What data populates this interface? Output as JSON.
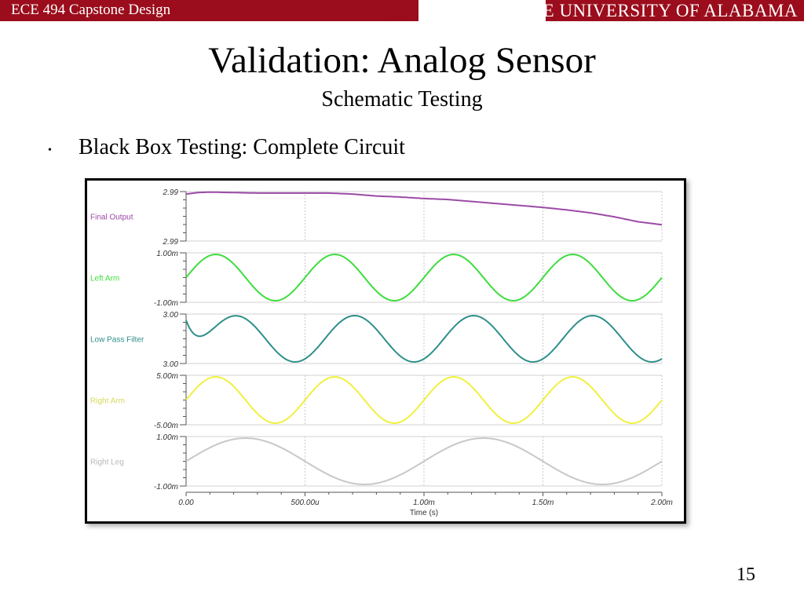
{
  "header": {
    "course": "ECE 494 Capstone Design",
    "university": "THE UNIVERSITY OF ALABAMA",
    "colors": {
      "crimson": "#9b0d1c"
    },
    "logo_icon": "script-a-icon"
  },
  "slide": {
    "title": "Validation: Analog Sensor",
    "subtitle": "Schematic Testing",
    "bullet": "Black Box Testing: Complete Circuit",
    "page_number": "15"
  },
  "chart_data": {
    "type": "line",
    "xlabel": "Time (s)",
    "x_ticks": [
      "0.00",
      "500.00u",
      "1.00m",
      "1.50m",
      "2.00m"
    ],
    "xlim": [
      0,
      0.002
    ],
    "grid": true,
    "series": [
      {
        "name": "Final Output",
        "color": "#9b4aa6",
        "ylim_labels": [
          "2.99",
          "2.99"
        ],
        "x": [
          0,
          5e-05,
          0.0001,
          0.0002,
          0.0003,
          0.0004,
          0.0005,
          0.0006,
          0.0007,
          0.0008,
          0.0009,
          0.001,
          0.0011,
          0.0012,
          0.0013,
          0.0014,
          0.0015,
          0.0016,
          0.0017,
          0.0018,
          0.0019,
          0.002
        ],
        "values": [
          0.95,
          0.98,
          0.99,
          0.98,
          0.97,
          0.97,
          0.97,
          0.97,
          0.95,
          0.91,
          0.89,
          0.86,
          0.84,
          0.8,
          0.76,
          0.72,
          0.68,
          0.63,
          0.57,
          0.49,
          0.39,
          0.33
        ],
        "shape": "drift",
        "note_scale": "normalized within panel range"
      },
      {
        "name": "Left Arm",
        "color": "#3fdc3f",
        "ylim_labels": [
          "1.00m",
          "-1.00m"
        ],
        "shape": "sine",
        "amplitude": 0.001,
        "period": 0.0005,
        "phase_deg": 0
      },
      {
        "name": "Low Pass Filter",
        "color": "#2e8f8a",
        "ylim_labels": [
          "3.00",
          "3.00"
        ],
        "shape": "sine",
        "amplitude": 0.6,
        "period": 0.0005,
        "phase_deg": -60,
        "start_transient": true
      },
      {
        "name": "Right Arm",
        "color": "#f0f040",
        "ylim_labels": [
          "5.00m",
          "-5.00m"
        ],
        "shape": "sine",
        "amplitude": 0.005,
        "period": 0.0005,
        "phase_deg": 0
      },
      {
        "name": "Right Leg",
        "color": "#c8c8c8",
        "ylim_labels": [
          "1.00m",
          "-1.00m"
        ],
        "shape": "sine",
        "amplitude": 0.001,
        "period": 0.001,
        "phase_deg": 0
      }
    ]
  }
}
